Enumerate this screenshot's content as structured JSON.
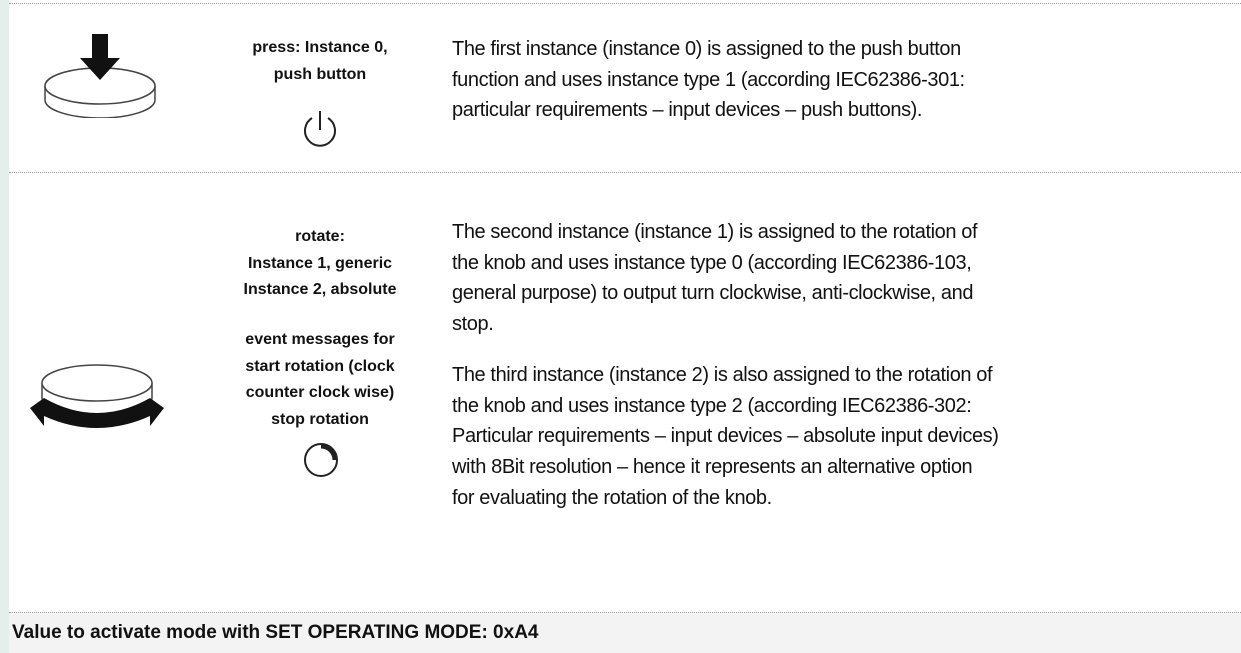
{
  "rows": [
    {
      "label": [
        [
          "press: Instance 0,",
          "push button"
        ]
      ],
      "description": [
        [
          "The first instance (instance 0) is assigned to the push button",
          "function and uses instance type 1 (according IEC62386-301:",
          "particular requirements – input devices – push buttons)."
        ]
      ]
    },
    {
      "label": [
        [
          "rotate:",
          "Instance 1, generic",
          "Instance 2, absolute"
        ],
        [
          "event messages for",
          "start rotation (clock",
          "counter clock wise)",
          "stop rotation"
        ]
      ],
      "description": [
        [
          "The second instance (instance 1) is assigned to the rotation of",
          "the knob and uses instance type 0 (according IEC62386-103,",
          "general purpose) to output turn clockwise, anti-clockwise, and",
          "stop."
        ],
        [
          "The third instance (instance 2) is also assigned to the rotation of",
          "the knob and uses instance type 2 (according IEC62386-302:",
          "Particular requirements – input devices – absolute input devices)",
          "with 8Bit resolution – hence it represents an alternative option",
          "for evaluating the rotation of the knob."
        ]
      ]
    }
  ],
  "footer": "Value to activate mode with SET OPERATING MODE: 0xA4"
}
